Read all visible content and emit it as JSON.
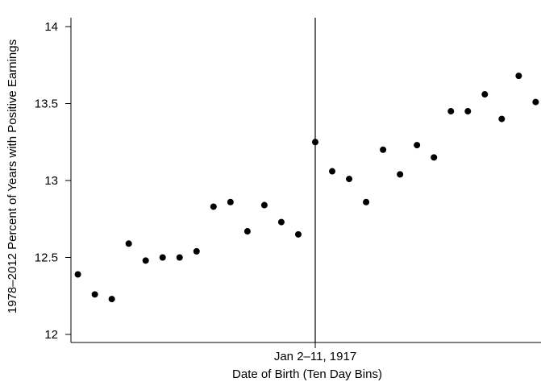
{
  "chart_data": {
    "type": "scatter",
    "xlabel": "Date of Birth (Ten Day Bins)",
    "ylabel": "1978–2012 Percent of Years with Positive Earnings",
    "ylim": [
      12,
      14
    ],
    "y_ticks": [
      12,
      12.5,
      13,
      13.5,
      14
    ],
    "y_tick_labels": [
      "12",
      "12.5",
      "13",
      "13.5",
      "14"
    ],
    "x_ticks": [
      {
        "x": 0,
        "label": "Jan 2–11, 1917"
      }
    ],
    "x_unit": "ten-day bins relative to the Jan 2–11, 1917 bin",
    "xlim": [
      -14.5,
      13.3
    ],
    "vertical_line_x": 0,
    "grid": false,
    "legend": "none",
    "marker_color": "#000000",
    "series": [
      {
        "x": [
          -14,
          -13,
          -12,
          -11,
          -10,
          -9,
          -8,
          -7,
          -6,
          -5,
          -4,
          -3,
          -2,
          -1,
          0,
          1,
          2,
          3,
          4,
          5,
          6,
          7,
          8,
          9,
          10,
          11,
          12,
          13
        ],
        "values": [
          12.39,
          12.26,
          12.23,
          12.59,
          12.48,
          12.5,
          12.5,
          12.54,
          12.83,
          12.86,
          12.67,
          12.84,
          12.73,
          12.65,
          13.25,
          13.06,
          13.01,
          12.86,
          13.2,
          13.04,
          13.23,
          13.15,
          13.45,
          13.45,
          13.56,
          13.4,
          13.68,
          13.51
        ]
      }
    ]
  }
}
